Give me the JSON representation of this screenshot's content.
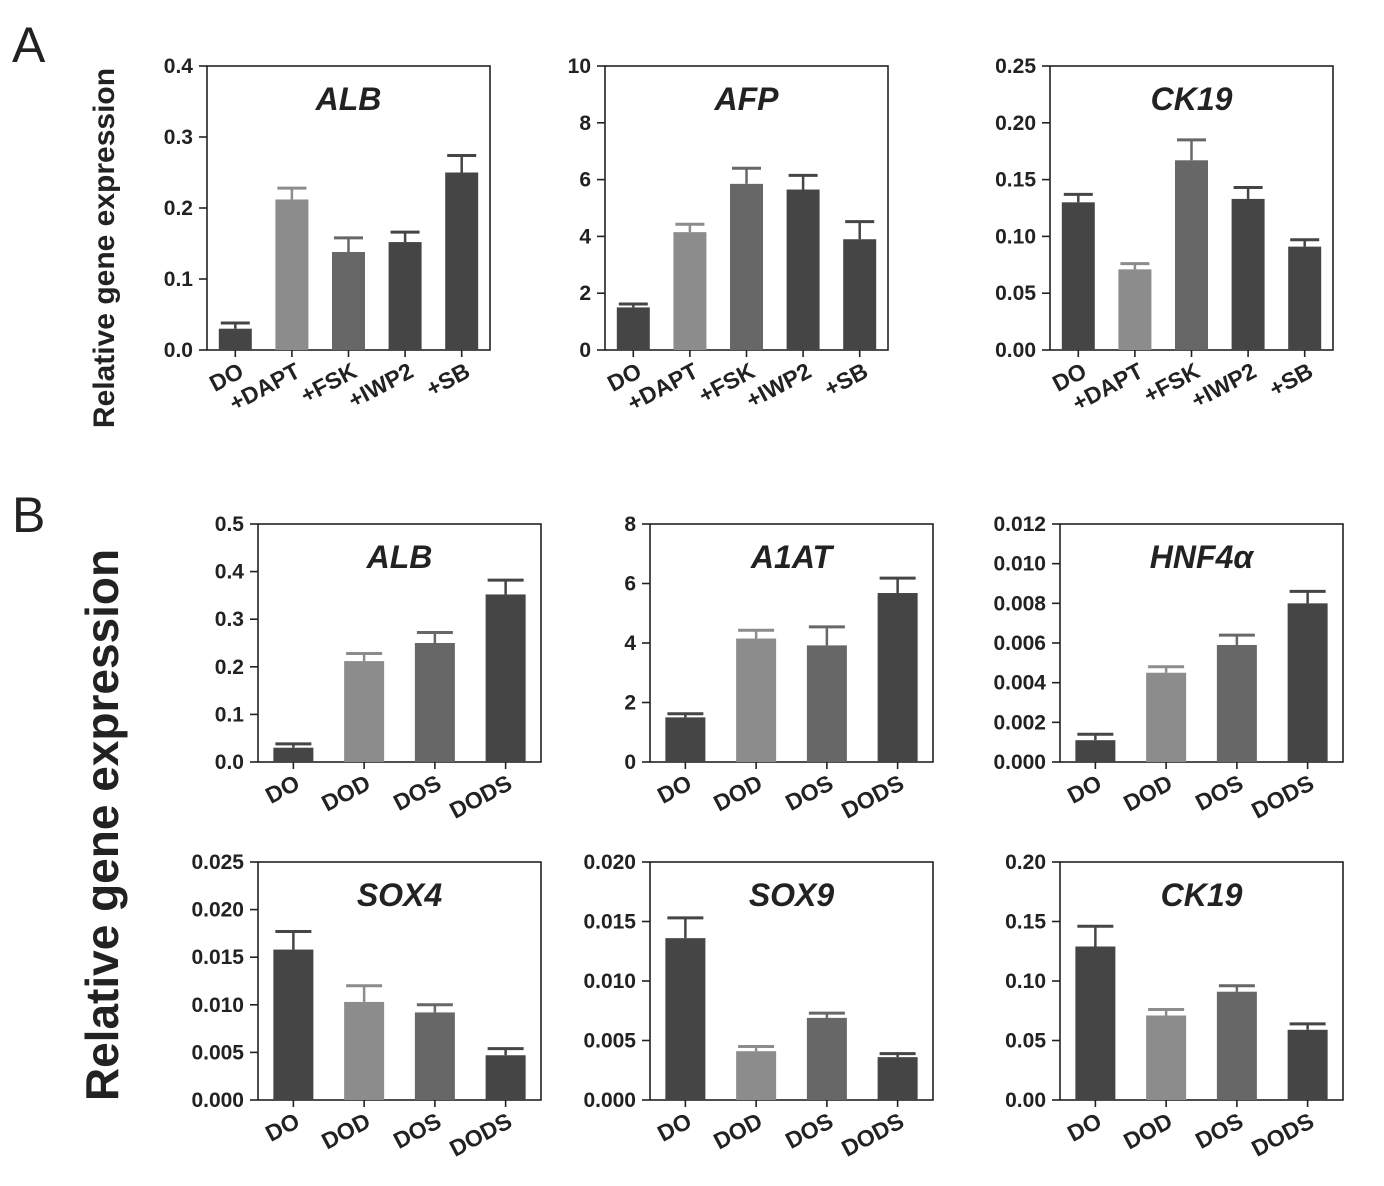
{
  "panel_labels": {
    "a": "A",
    "b": "B"
  },
  "y_axis_label": "Relative gene expression",
  "colors": {
    "dark": "#454545",
    "light": "#8c8c8c",
    "mid": "#676767",
    "axis": "#222222"
  },
  "chart_data": [
    {
      "id": "A1",
      "panel": "A",
      "type": "bar",
      "title": "ALB",
      "categories": [
        "DO",
        "+DAPT",
        "+FSK",
        "+IWP2",
        "+SB"
      ],
      "values": [
        0.03,
        0.212,
        0.138,
        0.152,
        0.25
      ],
      "errors": [
        0.008,
        0.016,
        0.02,
        0.014,
        0.024
      ],
      "ylim": [
        0,
        0.4
      ],
      "yticks": [
        "0.0",
        "0.1",
        "0.2",
        "0.3",
        "0.4"
      ],
      "ylabel": "Relative gene expression",
      "bar_colors": [
        "dark",
        "light",
        "mid",
        "dark",
        "dark"
      ]
    },
    {
      "id": "A2",
      "panel": "A",
      "type": "bar",
      "title": "AFP",
      "categories": [
        "DO",
        "+DAPT",
        "+FSK",
        "+IWP2",
        "+SB"
      ],
      "values": [
        1.5,
        4.15,
        5.85,
        5.65,
        3.9
      ],
      "errors": [
        0.12,
        0.28,
        0.55,
        0.5,
        0.62
      ],
      "ylim": [
        0,
        10
      ],
      "yticks": [
        "0",
        "2",
        "4",
        "6",
        "8",
        "10"
      ],
      "bar_colors": [
        "dark",
        "light",
        "mid",
        "dark",
        "dark"
      ]
    },
    {
      "id": "A3",
      "panel": "A",
      "type": "bar",
      "title": "CK19",
      "categories": [
        "DO",
        "+DAPT",
        "+FSK",
        "+IWP2",
        "+SB"
      ],
      "values": [
        0.13,
        0.071,
        0.167,
        0.133,
        0.091
      ],
      "errors": [
        0.007,
        0.005,
        0.018,
        0.01,
        0.006
      ],
      "ylim": [
        0,
        0.25
      ],
      "yticks": [
        "0.00",
        "0.05",
        "0.10",
        "0.15",
        "0.20",
        "0.25"
      ],
      "bar_colors": [
        "dark",
        "light",
        "mid",
        "dark",
        "dark"
      ]
    },
    {
      "id": "B1",
      "panel": "B",
      "type": "bar",
      "title": "ALB",
      "categories": [
        "DO",
        "DOD",
        "DOS",
        "DODS"
      ],
      "values": [
        0.03,
        0.212,
        0.25,
        0.352
      ],
      "errors": [
        0.008,
        0.016,
        0.022,
        0.03
      ],
      "ylim": [
        0,
        0.5
      ],
      "yticks": [
        "0.0",
        "0.1",
        "0.2",
        "0.3",
        "0.4",
        "0.5"
      ],
      "ylabel": "Relative gene expression",
      "bar_colors": [
        "dark",
        "light",
        "mid",
        "dark"
      ]
    },
    {
      "id": "B2",
      "panel": "B",
      "type": "bar",
      "title": "A1AT",
      "categories": [
        "DO",
        "DOD",
        "DOS",
        "DODS"
      ],
      "values": [
        1.5,
        4.15,
        3.92,
        5.68
      ],
      "errors": [
        0.12,
        0.28,
        0.62,
        0.5
      ],
      "ylim": [
        0,
        8
      ],
      "yticks": [
        "0",
        "2",
        "4",
        "6",
        "8"
      ],
      "bar_colors": [
        "dark",
        "light",
        "mid",
        "dark"
      ]
    },
    {
      "id": "B3",
      "panel": "B",
      "type": "bar",
      "title": "HNF4α",
      "categories": [
        "DO",
        "DOD",
        "DOS",
        "DODS"
      ],
      "values": [
        0.0011,
        0.0045,
        0.0059,
        0.008
      ],
      "errors": [
        0.0003,
        0.0003,
        0.0005,
        0.0006
      ],
      "ylim": [
        0,
        0.012
      ],
      "yticks": [
        "0.000",
        "0.002",
        "0.004",
        "0.006",
        "0.008",
        "0.010",
        "0.012"
      ],
      "bar_colors": [
        "dark",
        "light",
        "mid",
        "dark"
      ]
    },
    {
      "id": "B4",
      "panel": "B",
      "type": "bar",
      "title": "SOX4",
      "categories": [
        "DO",
        "DOD",
        "DOS",
        "DODS"
      ],
      "values": [
        0.0158,
        0.0103,
        0.0092,
        0.0047
      ],
      "errors": [
        0.0019,
        0.0017,
        0.0008,
        0.0007
      ],
      "ylim": [
        0,
        0.025
      ],
      "yticks": [
        "0.000",
        "0.005",
        "0.010",
        "0.015",
        "0.020",
        "0.025"
      ],
      "bar_colors": [
        "dark",
        "light",
        "mid",
        "dark"
      ]
    },
    {
      "id": "B5",
      "panel": "B",
      "type": "bar",
      "title": "SOX9",
      "categories": [
        "DO",
        "DOD",
        "DOS",
        "DODS"
      ],
      "values": [
        0.0136,
        0.0041,
        0.0069,
        0.0036
      ],
      "errors": [
        0.0017,
        0.0004,
        0.0004,
        0.0003
      ],
      "ylim": [
        0,
        0.02
      ],
      "yticks": [
        "0.000",
        "0.005",
        "0.010",
        "0.015",
        "0.020"
      ],
      "bar_colors": [
        "dark",
        "light",
        "mid",
        "dark"
      ]
    },
    {
      "id": "B6",
      "panel": "B",
      "type": "bar",
      "title": "CK19",
      "categories": [
        "DO",
        "DOD",
        "DOS",
        "DODS"
      ],
      "values": [
        0.129,
        0.071,
        0.091,
        0.059
      ],
      "errors": [
        0.017,
        0.005,
        0.005,
        0.005
      ],
      "ylim": [
        0,
        0.2
      ],
      "yticks": [
        "0.00",
        "0.05",
        "0.10",
        "0.15",
        "0.20"
      ],
      "bar_colors": [
        "dark",
        "light",
        "mid",
        "dark"
      ]
    }
  ]
}
